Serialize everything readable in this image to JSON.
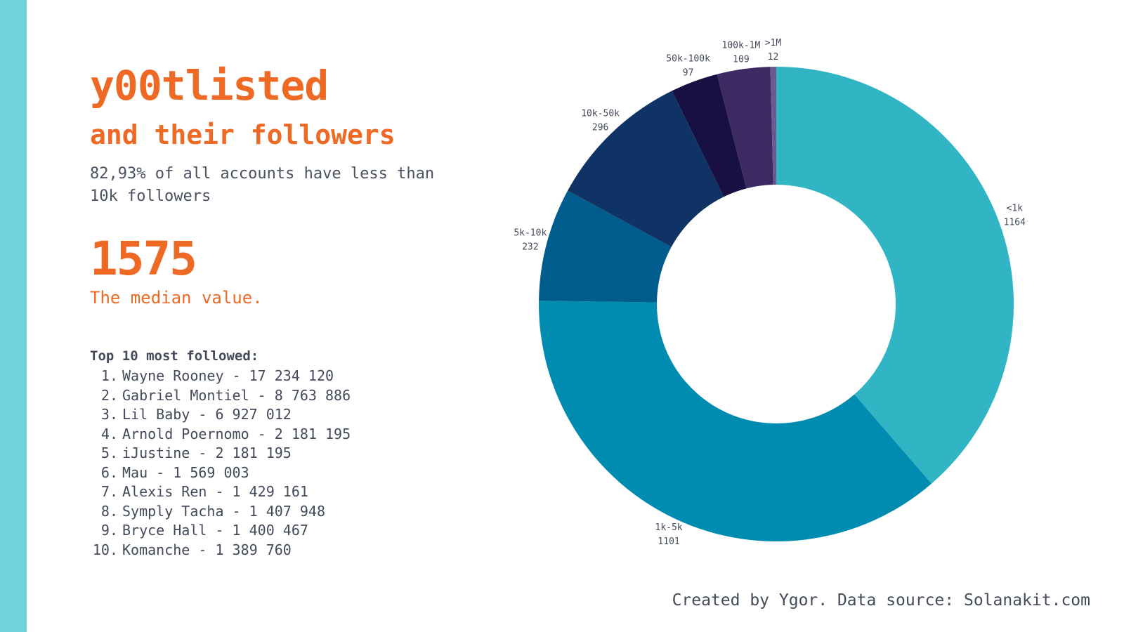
{
  "theme": {
    "accent": "#ee6a24",
    "text": "#434a5a",
    "sidebar": "#6fd3db"
  },
  "header": {
    "title": "y00tlisted",
    "subtitle": "and their followers",
    "stat_text": "82,93% of all accounts have less than 10k followers"
  },
  "median": {
    "value": "1575",
    "label": "The median value."
  },
  "top_list": {
    "heading": "Top 10 most followed:",
    "items": [
      {
        "rank": "1.",
        "text": "Wayne Rooney - 17 234 120"
      },
      {
        "rank": "2.",
        "text": "Gabriel Montiel - 8 763 886"
      },
      {
        "rank": "3.",
        "text": "Lil Baby - 6 927 012"
      },
      {
        "rank": "4.",
        "text": "Arnold Poernomo - 2 181 195"
      },
      {
        "rank": "5.",
        "text": "iJustine - 2 181 195"
      },
      {
        "rank": "6.",
        "text": "Mau - 1 569 003"
      },
      {
        "rank": "7.",
        "text": "Alexis Ren - 1 429 161"
      },
      {
        "rank": "8.",
        "text": "Symply Tacha - 1 407 948"
      },
      {
        "rank": "9.",
        "text": "Bryce Hall - 1 400 467"
      },
      {
        "rank": "10.",
        "text": "Komanche - 1 389 760"
      }
    ]
  },
  "footer": {
    "credit": "Created by Ygor. Data source: Solanakit.com"
  },
  "chart_data": {
    "type": "pie",
    "title": "y00tlisted and their followers",
    "categories": [
      "<1k",
      "1k-5k",
      "5k-10k",
      "10k-50k",
      "50k-100k",
      "100k-1M",
      ">1M"
    ],
    "values": [
      1164,
      1101,
      232,
      296,
      97,
      109,
      12
    ],
    "colors": [
      "#31b5c4",
      "#008bb0",
      "#005c8d",
      "#103366",
      "#180f42",
      "#3d2a63",
      "#6a5a91"
    ],
    "donut": true
  }
}
